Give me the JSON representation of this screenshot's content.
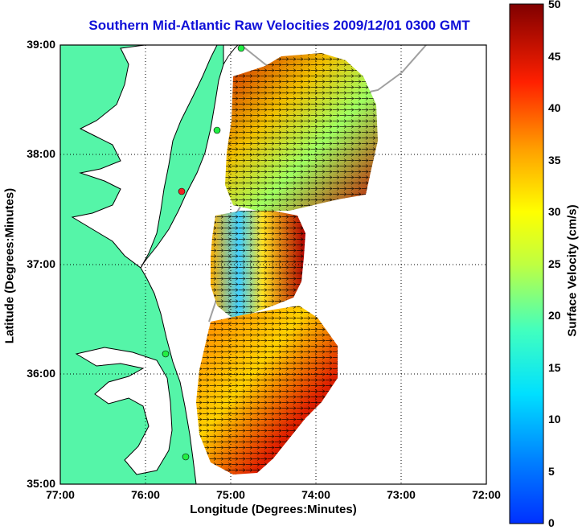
{
  "title": "Southern Mid-Atlantic Raw Velocities 2009/12/01 0300 GMT",
  "axes": {
    "xlabel": "Longitude (Degrees:Minutes)",
    "ylabel": "Latitude (Degrees:Minutes)",
    "xticks": [
      "77:00",
      "76:00",
      "75:00",
      "74:00",
      "73:00",
      "72:00"
    ],
    "yticks": [
      "39:00",
      "38:00",
      "37:00",
      "36:00",
      "35:00"
    ]
  },
  "colorbar": {
    "label": "Surface Velocity (cm/s)",
    "ticks": [
      "50",
      "45",
      "40",
      "35",
      "30",
      "25",
      "20",
      "15",
      "10",
      "5",
      "0"
    ]
  },
  "colors": {
    "land": "#55f5a8",
    "title": "#1010d8"
  }
}
